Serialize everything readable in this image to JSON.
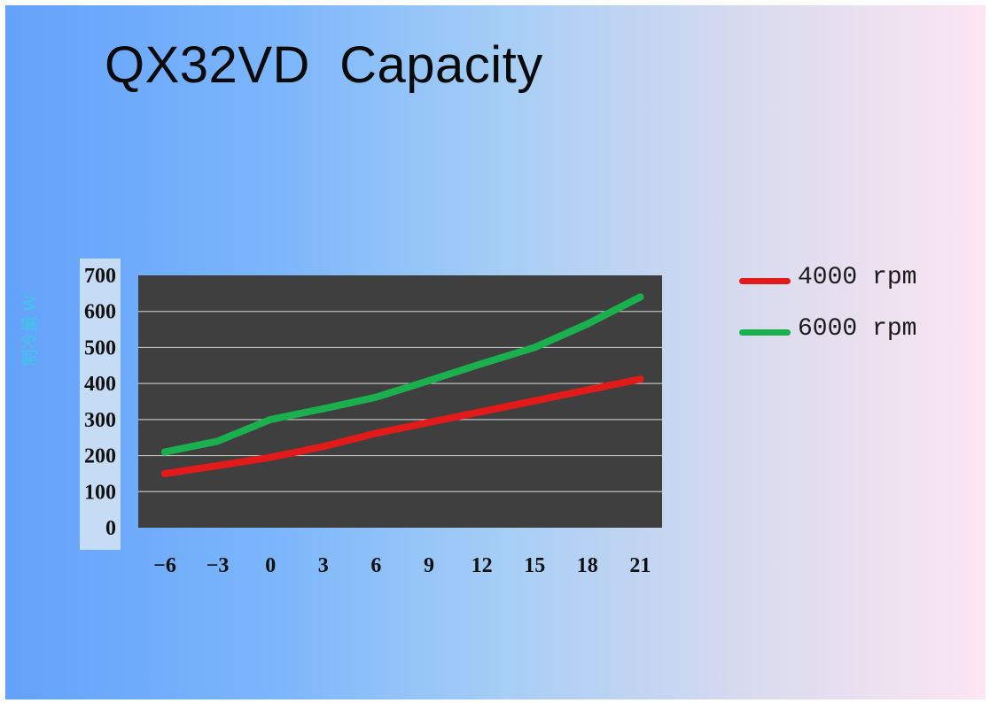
{
  "slide": {
    "title": "QX32VD  Capacity"
  },
  "colors": {
    "plot_background": "#3f3f3f",
    "gridline": "#bdbdbd",
    "series_4000": "#e21a1a",
    "series_6000": "#1bb04e",
    "ylabel": "#3ec7e6"
  },
  "chart_data": {
    "type": "line",
    "title": "QX32VD  Capacity",
    "xlabel": "",
    "ylabel": "制冷量 W",
    "x": [
      -6,
      -3,
      0,
      3,
      6,
      9,
      12,
      15,
      18,
      21
    ],
    "x_tick_labels": [
      "−6",
      "−3",
      "0",
      "3",
      "6",
      "9",
      "12",
      "15",
      "18",
      "21"
    ],
    "y_ticks": [
      0,
      100,
      200,
      300,
      400,
      500,
      600,
      700
    ],
    "ylim": [
      0,
      700
    ],
    "grid": true,
    "legend_position": "right",
    "series": [
      {
        "name": "4000 rpm",
        "color": "#e21a1a",
        "values": [
          150,
          172,
          195,
          225,
          262,
          292,
          322,
          352,
          382,
          412
        ]
      },
      {
        "name": "6000 rpm",
        "color": "#1bb04e",
        "values": [
          210,
          240,
          300,
          330,
          362,
          408,
          455,
          500,
          565,
          640
        ]
      }
    ]
  }
}
